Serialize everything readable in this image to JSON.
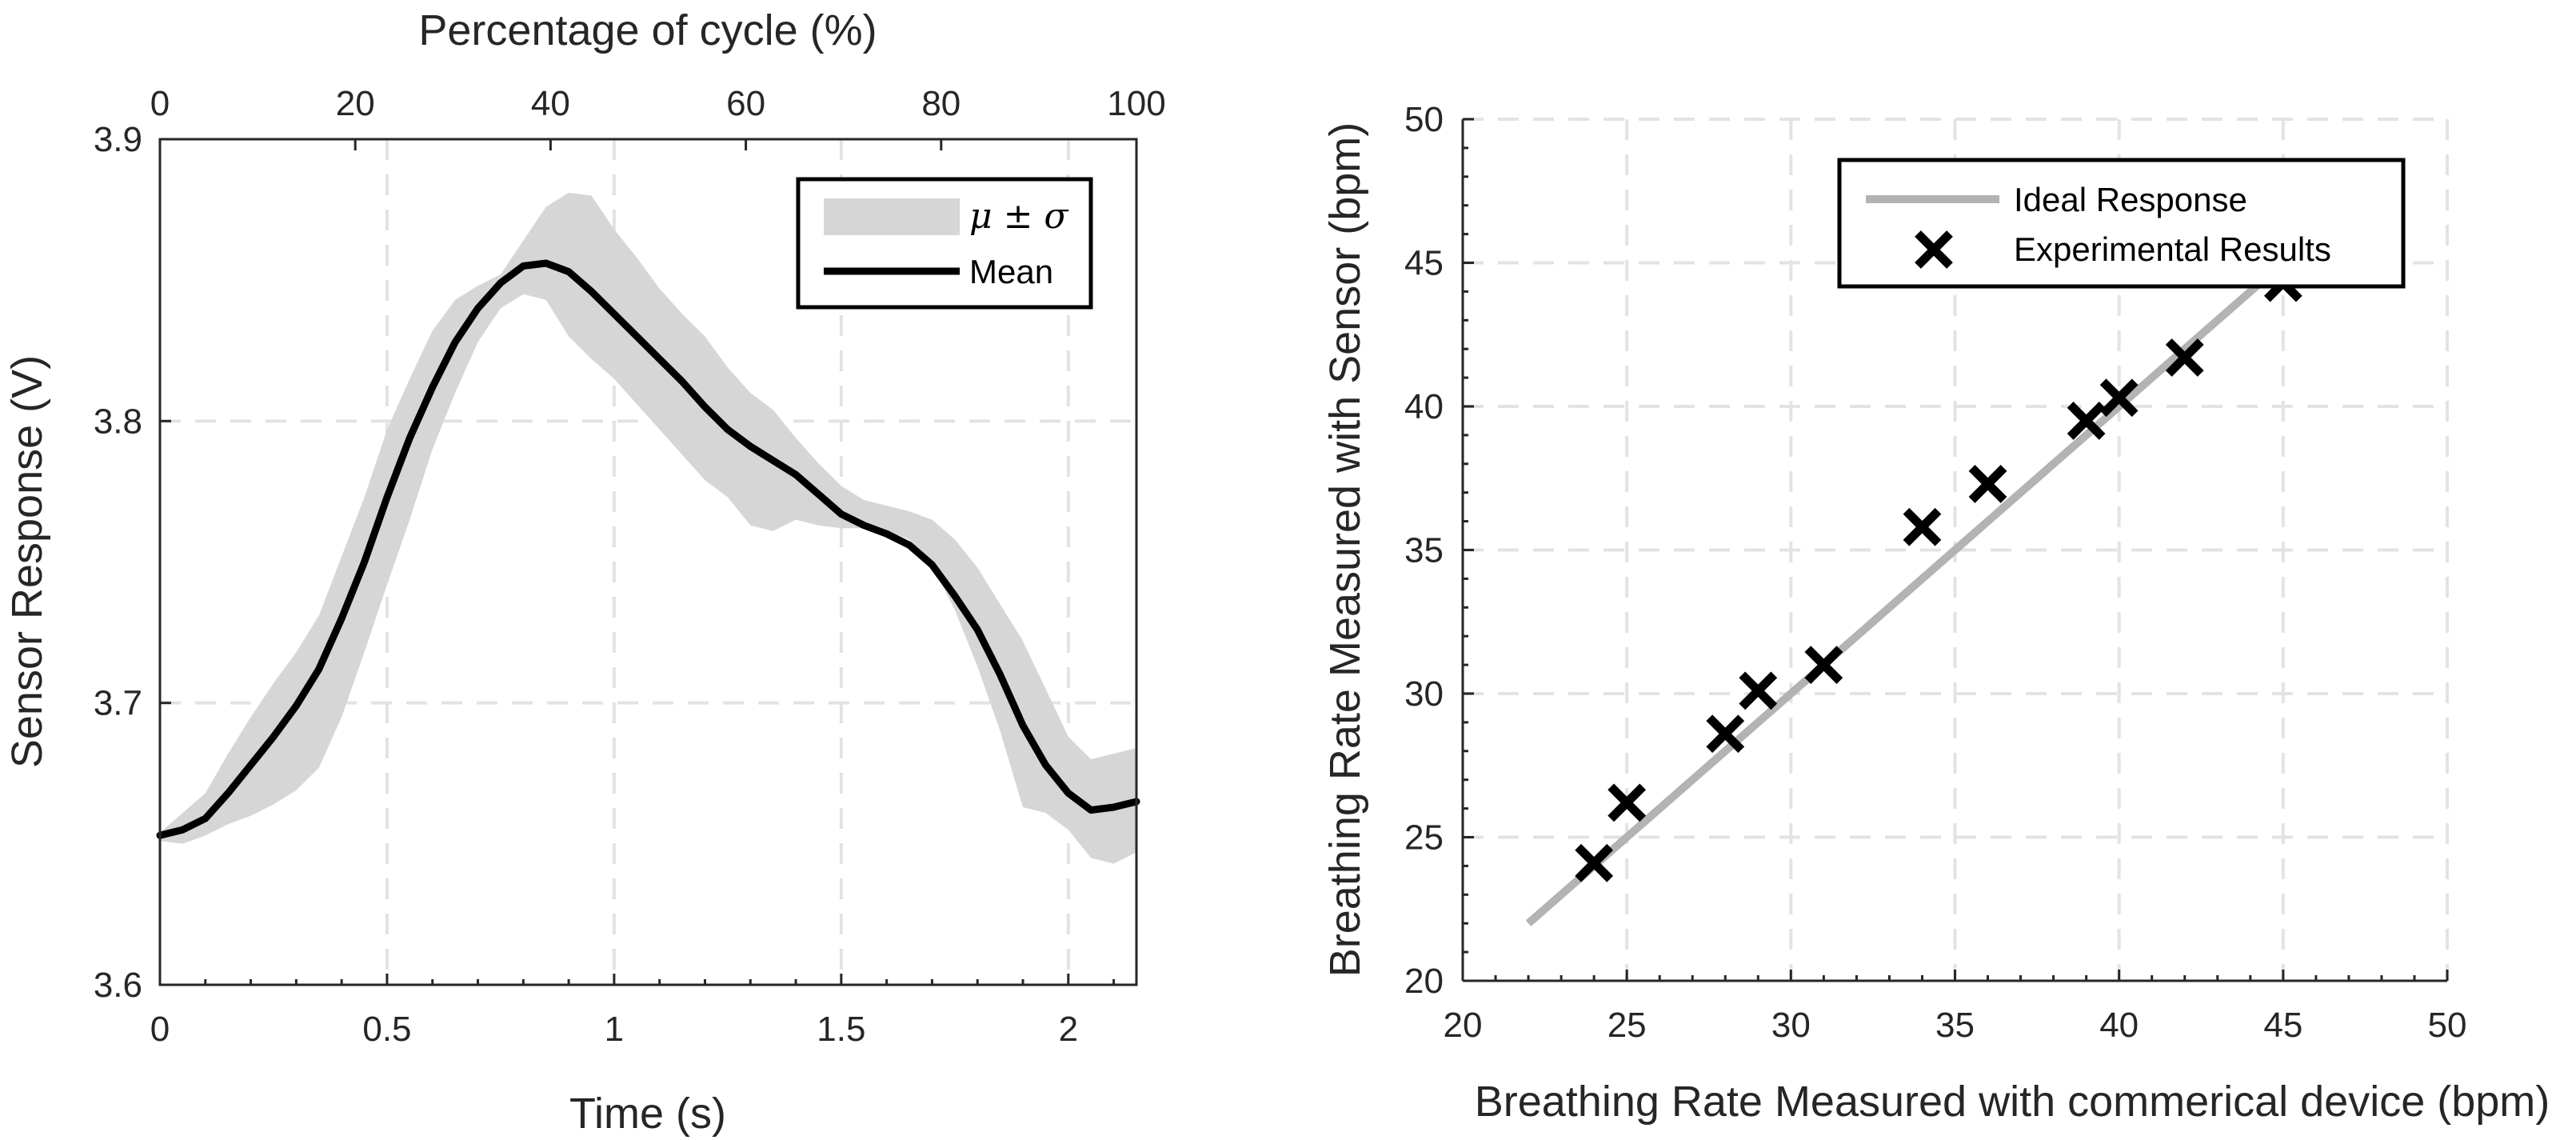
{
  "chart_data": [
    {
      "type": "area",
      "xlabel": "Time (s)",
      "x2label": "Percentage of cycle (%)",
      "ylabel": "Sensor Response (V)",
      "xlim": [
        0,
        2.15
      ],
      "x2lim": [
        0,
        100
      ],
      "ylim": [
        3.6,
        3.9
      ],
      "xticks": [
        "0",
        "0.5",
        "1",
        "1.5",
        "2"
      ],
      "xtick_values": [
        0,
        0.5,
        1,
        1.5,
        2
      ],
      "x2ticks": [
        "0",
        "20",
        "40",
        "60",
        "80",
        "100"
      ],
      "x2tick_values": [
        0,
        20,
        40,
        60,
        80,
        100
      ],
      "yticks": [
        "3.6",
        "3.7",
        "3.8",
        "3.9"
      ],
      "ytick_values": [
        3.6,
        3.7,
        3.8,
        3.9
      ],
      "grid": true,
      "legend": {
        "position": "top-right",
        "entries": [
          {
            "label": "μ ± σ",
            "kind": "band",
            "color": "#d6d6d6"
          },
          {
            "label": "Mean",
            "kind": "line",
            "color": "#000000"
          }
        ]
      },
      "series": [
        {
          "name": "Mean",
          "x": [
            0,
            0.05,
            0.1,
            0.15,
            0.2,
            0.25,
            0.3,
            0.35,
            0.4,
            0.45,
            0.5,
            0.55,
            0.6,
            0.65,
            0.7,
            0.75,
            0.8,
            0.85,
            0.9,
            0.95,
            1.0,
            1.05,
            1.1,
            1.15,
            1.2,
            1.25,
            1.3,
            1.35,
            1.4,
            1.45,
            1.5,
            1.55,
            1.6,
            1.65,
            1.7,
            1.75,
            1.8,
            1.85,
            1.9,
            1.95,
            2.0,
            2.05,
            2.1,
            2.15
          ],
          "y": [
            3.653,
            3.655,
            3.659,
            3.668,
            3.678,
            3.688,
            3.699,
            3.712,
            3.73,
            3.75,
            3.773,
            3.794,
            3.812,
            3.828,
            3.84,
            3.849,
            3.855,
            3.856,
            3.853,
            3.846,
            3.838,
            3.83,
            3.822,
            3.814,
            3.805,
            3.797,
            3.791,
            3.786,
            3.781,
            3.774,
            3.767,
            3.763,
            3.76,
            3.756,
            3.749,
            3.738,
            3.726,
            3.71,
            3.692,
            3.678,
            3.668,
            3.662,
            3.663,
            3.665
          ]
        },
        {
          "name": "μ ± σ",
          "x": [
            0,
            0.05,
            0.1,
            0.15,
            0.2,
            0.25,
            0.3,
            0.35,
            0.4,
            0.45,
            0.5,
            0.55,
            0.6,
            0.65,
            0.7,
            0.75,
            0.8,
            0.85,
            0.9,
            0.95,
            1.0,
            1.05,
            1.1,
            1.15,
            1.2,
            1.25,
            1.3,
            1.35,
            1.4,
            1.45,
            1.5,
            1.55,
            1.6,
            1.65,
            1.7,
            1.75,
            1.8,
            1.85,
            1.9,
            1.95,
            2.0,
            2.05,
            2.1,
            2.15
          ],
          "upper": [
            3.654,
            3.661,
            3.668,
            3.682,
            3.695,
            3.707,
            3.718,
            3.731,
            3.752,
            3.773,
            3.797,
            3.815,
            3.832,
            3.843,
            3.848,
            3.852,
            3.864,
            3.876,
            3.881,
            3.88,
            3.868,
            3.858,
            3.847,
            3.838,
            3.83,
            3.819,
            3.81,
            3.804,
            3.794,
            3.785,
            3.777,
            3.772,
            3.77,
            3.768,
            3.765,
            3.758,
            3.748,
            3.735,
            3.722,
            3.705,
            3.688,
            3.68,
            3.682,
            3.684
          ],
          "lower": [
            3.651,
            3.65,
            3.653,
            3.657,
            3.66,
            3.664,
            3.669,
            3.677,
            3.695,
            3.718,
            3.742,
            3.765,
            3.79,
            3.81,
            3.828,
            3.84,
            3.845,
            3.843,
            3.83,
            3.822,
            3.815,
            3.806,
            3.797,
            3.788,
            3.779,
            3.773,
            3.763,
            3.761,
            3.765,
            3.763,
            3.762,
            3.762,
            3.761,
            3.758,
            3.749,
            3.733,
            3.713,
            3.69,
            3.663,
            3.661,
            3.655,
            3.645,
            3.643,
            3.647
          ]
        }
      ]
    },
    {
      "type": "scatter",
      "xlabel": "Breathing Rate Measured with commerical device (bpm)",
      "ylabel": "Breathing Rate Measured with Sensor  (bpm)",
      "xlim": [
        20,
        50
      ],
      "ylim": [
        20,
        50
      ],
      "xticks": [
        "20",
        "25",
        "30",
        "35",
        "40",
        "45",
        "50"
      ],
      "xtick_values": [
        20,
        25,
        30,
        35,
        40,
        45,
        50
      ],
      "yticks": [
        "20",
        "25",
        "30",
        "35",
        "40",
        "45",
        "50"
      ],
      "ytick_values": [
        20,
        25,
        30,
        35,
        40,
        45,
        50
      ],
      "grid": true,
      "legend": {
        "position": "top-right",
        "entries": [
          {
            "label": "Ideal Response",
            "kind": "line",
            "color": "#b3b3b3"
          },
          {
            "label": "Experimental Results",
            "kind": "marker",
            "color": "#000000"
          }
        ]
      },
      "series": [
        {
          "name": "Ideal Response",
          "kind": "line",
          "x": [
            22,
            46
          ],
          "y": [
            22,
            46
          ]
        },
        {
          "name": "Experimental Results",
          "kind": "scatter",
          "x": [
            24,
            25,
            28,
            29,
            31,
            34,
            36,
            39,
            40,
            42,
            45
          ],
          "y": [
            24.1,
            26.2,
            28.6,
            30.1,
            31.0,
            35.8,
            37.3,
            39.5,
            40.3,
            41.7,
            44.3
          ]
        }
      ]
    }
  ]
}
